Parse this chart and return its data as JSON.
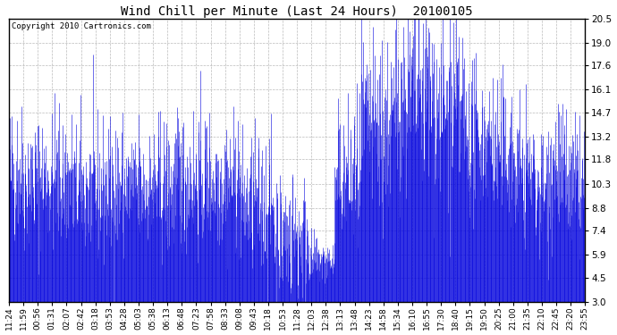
{
  "title": "Wind Chill per Minute (Last 24 Hours)  20100105",
  "copyright_text": "Copyright 2010 Cartronics.com",
  "y_ticks": [
    3.0,
    4.5,
    5.9,
    7.4,
    8.8,
    10.3,
    11.8,
    13.2,
    14.7,
    16.1,
    17.6,
    19.0,
    20.5
  ],
  "y_min": 3.0,
  "y_max": 20.5,
  "line_color": "#0000dd",
  "fig_bg": "#ffffff",
  "plot_bg": "#ffffff",
  "x_tick_labels": [
    "11:24",
    "11:59",
    "00:56",
    "01:31",
    "02:07",
    "02:42",
    "03:18",
    "03:53",
    "04:28",
    "05:03",
    "05:38",
    "06:13",
    "06:48",
    "07:23",
    "07:58",
    "08:33",
    "09:08",
    "09:43",
    "10:18",
    "10:53",
    "11:28",
    "12:03",
    "12:38",
    "13:13",
    "13:48",
    "14:23",
    "14:58",
    "15:34",
    "16:10",
    "16:55",
    "17:30",
    "18:40",
    "19:15",
    "19:50",
    "20:25",
    "21:00",
    "21:35",
    "22:10",
    "22:45",
    "23:20",
    "23:55"
  ],
  "baseline": 3.0,
  "seed": 42,
  "n_points": 1440
}
